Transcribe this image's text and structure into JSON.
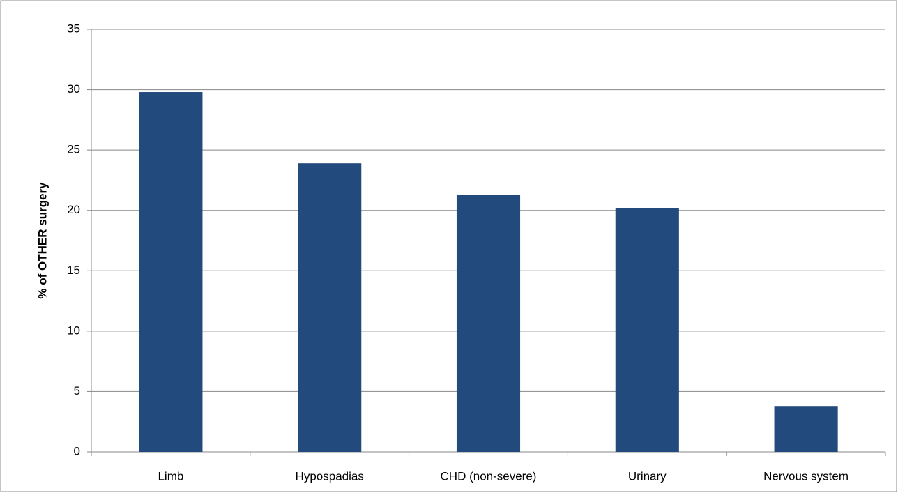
{
  "chart_data": {
    "type": "bar",
    "y_axis_label": "% of OTHER surgery",
    "categories": [
      "Limb",
      "Hypospadias",
      "CHD (non-severe)",
      "Urinary",
      "Nervous system"
    ],
    "values": [
      29.8,
      23.9,
      21.3,
      20.2,
      3.8
    ],
    "color": "#224a7d",
    "ylim": [
      0,
      35
    ],
    "yticks": [
      0,
      5,
      10,
      15,
      20,
      25,
      30,
      35
    ],
    "grid": true
  }
}
